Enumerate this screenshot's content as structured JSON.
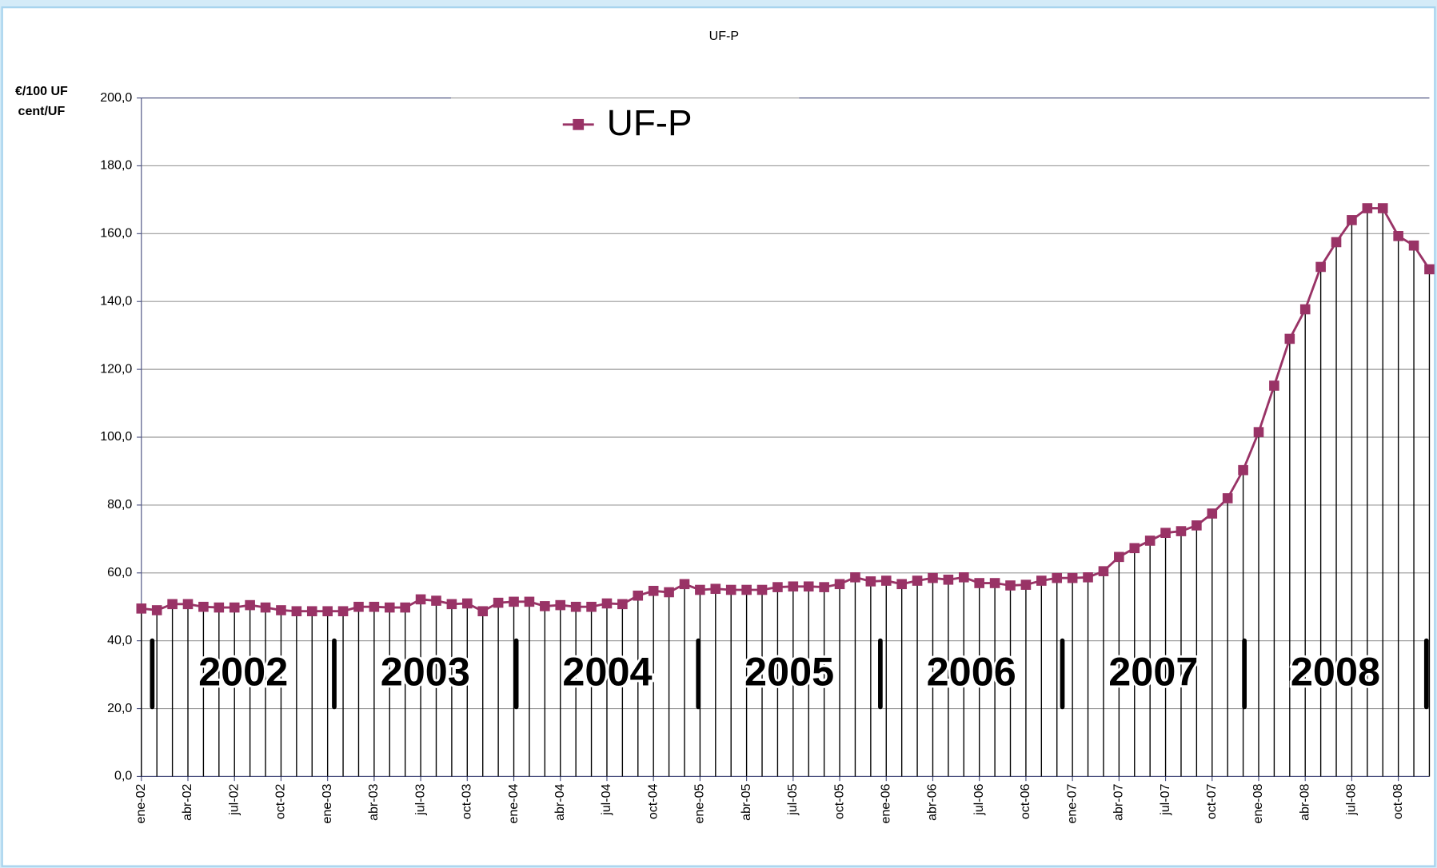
{
  "chart_data": {
    "type": "line",
    "title": "UF-P",
    "ylabel": [
      "€/100 UF",
      "cent/UF"
    ],
    "categories": [
      "ene-02",
      null,
      null,
      "abr-02",
      null,
      null,
      "jul-02",
      null,
      null,
      "oct-02",
      null,
      null,
      "ene-03",
      null,
      null,
      "abr-03",
      null,
      null,
      "jul-03",
      null,
      null,
      "oct-03",
      null,
      null,
      "ene-04",
      null,
      null,
      "abr-04",
      null,
      null,
      "jul-04",
      null,
      null,
      "oct-04",
      null,
      null,
      "ene-05",
      null,
      null,
      "abr-05",
      null,
      null,
      "jul-05",
      null,
      null,
      "oct-05",
      null,
      null,
      "ene-06",
      null,
      null,
      "abr-06",
      null,
      null,
      "jul-06",
      null,
      null,
      "oct-06",
      null,
      null,
      "ene-07",
      null,
      null,
      "abr-07",
      null,
      null,
      "jul-07",
      null,
      null,
      "oct-07",
      null,
      null,
      "ene-08",
      null,
      null,
      "abr-08",
      null,
      null,
      "jul-08",
      null,
      null,
      "oct-08",
      null,
      null
    ],
    "series": [
      {
        "name": "UF-P",
        "color": "#993366",
        "values": [
          49.5,
          49,
          50.8,
          50.8,
          50,
          49.8,
          49.8,
          50.5,
          49.8,
          49,
          48.7,
          48.7,
          48.7,
          48.7,
          50,
          50,
          49.8,
          49.8,
          52.2,
          51.8,
          50.8,
          51,
          48.7,
          51.2,
          51.5,
          51.5,
          50.2,
          50.5,
          50,
          50,
          51,
          50.8,
          53.3,
          54.7,
          54.3,
          56.7,
          55,
          55.3,
          55,
          55,
          55,
          55.8,
          56,
          56,
          55.8,
          56.7,
          58.7,
          57.5,
          57.7,
          56.7,
          57.7,
          58.5,
          58,
          58.7,
          57,
          57,
          56.3,
          56.5,
          57.7,
          58.5,
          58.5,
          58.7,
          60.5,
          64.7,
          67.3,
          69.5,
          71.8,
          72.3,
          74,
          77.5,
          82,
          90.3,
          101.5,
          115.2,
          129,
          137.7,
          150.2,
          157.5,
          164,
          167.5,
          167.5,
          159.3,
          156.5,
          149.5
        ]
      }
    ],
    "ylim": [
      0,
      200
    ],
    "yticks": [
      {
        "value": 0,
        "label": "0,0"
      },
      {
        "value": 20,
        "label": "20,0"
      },
      {
        "value": 40,
        "label": "40,0"
      },
      {
        "value": 60,
        "label": "60,0"
      },
      {
        "value": 80,
        "label": "80,0"
      },
      {
        "value": 100,
        "label": "100,0"
      },
      {
        "value": 120,
        "label": "120,0"
      },
      {
        "value": 140,
        "label": "140,0"
      },
      {
        "value": 160,
        "label": "160,0"
      },
      {
        "value": 180,
        "label": "180,0"
      },
      {
        "value": 200,
        "label": "200,0"
      }
    ],
    "grid": true,
    "marker": "square",
    "drop_lines": true,
    "legend": "top",
    "annotations": [
      "2002",
      "2003",
      "2004",
      "2005",
      "2006",
      "2007",
      "2008"
    ]
  }
}
